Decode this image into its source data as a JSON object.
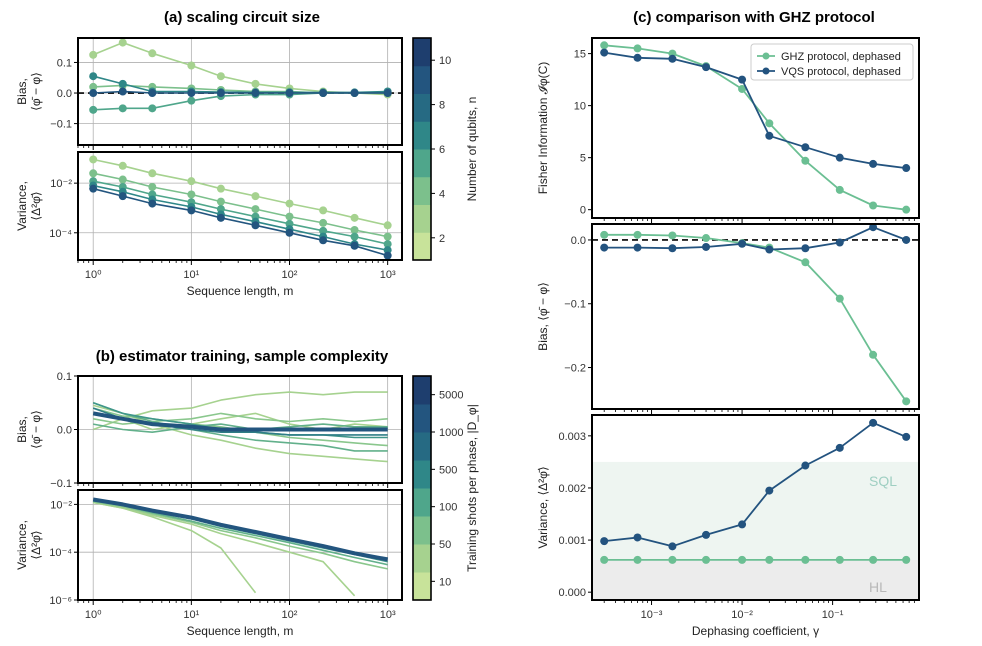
{
  "chart_data": [
    {
      "panel": "a-bias",
      "type": "line",
      "title": "(a) scaling circuit size",
      "ylabel_top": "Bias,",
      "ylabel_bottom": "⟨φ̄ − φ⟩",
      "xscale": "log",
      "xlim": [
        0.7,
        1400
      ],
      "ylim": [
        -0.17,
        0.18
      ],
      "yticks": [
        -0.1,
        0.0,
        0.1
      ],
      "ytick_labels": [
        "−0.1",
        "0.0",
        "0.1"
      ],
      "x": [
        1,
        2,
        4,
        10,
        20,
        45,
        100,
        220,
        460,
        1000
      ],
      "reference_line": 0,
      "series": [
        {
          "name": "n=2",
          "color": "#a6d28f",
          "values": [
            0.125,
            0.165,
            0.13,
            0.09,
            0.055,
            0.03,
            0.015,
            0.005,
            0.0,
            -0.005
          ]
        },
        {
          "name": "n=4",
          "color": "#7cc08c",
          "values": [
            0.02,
            0.025,
            0.02,
            0.015,
            0.01,
            0.005,
            0.005,
            0.0,
            0.0,
            0.0
          ]
        },
        {
          "name": "n=6",
          "color": "#4fa68b",
          "values": [
            -0.055,
            -0.05,
            -0.05,
            -0.025,
            -0.01,
            -0.005,
            -0.005,
            0.0,
            0.0,
            0.0
          ]
        },
        {
          "name": "n=8",
          "color": "#2f8788",
          "values": [
            0.055,
            0.03,
            0.005,
            0.005,
            0.003,
            0.002,
            0.002,
            0.002,
            0.002,
            0.005
          ]
        },
        {
          "name": "n=10",
          "color": "#23557f",
          "values": [
            0.0,
            0.005,
            0.0,
            0.0,
            0.0,
            0.0,
            0.0,
            0.0,
            0.0,
            0.0
          ]
        }
      ]
    },
    {
      "panel": "a-variance",
      "type": "line",
      "ylabel_top": "Variance,",
      "ylabel_bottom": "⟨Δ²φ̄⟩",
      "xscale": "log",
      "yscale": "log",
      "xlim": [
        0.7,
        1400
      ],
      "ylim": [
        8e-06,
        0.18
      ],
      "yticks": [
        0.0001,
        0.01
      ],
      "ytick_labels": [
        "10⁻⁴",
        "10⁻²"
      ],
      "xticks": [
        1,
        10,
        100,
        1000
      ],
      "xtick_labels": [
        "10⁰",
        "10¹",
        "10²",
        "10³"
      ],
      "xlabel": "Sequence length, m",
      "x": [
        1,
        2,
        4,
        10,
        20,
        45,
        100,
        220,
        460,
        1000
      ],
      "series": [
        {
          "name": "n=2",
          "color": "#a6d28f",
          "values": [
            0.09,
            0.05,
            0.025,
            0.012,
            0.006,
            0.003,
            0.0015,
            0.0008,
            0.0004,
            0.0002
          ]
        },
        {
          "name": "n=4",
          "color": "#7cc08c",
          "values": [
            0.025,
            0.014,
            0.007,
            0.0035,
            0.0018,
            0.0009,
            0.00045,
            0.00025,
            0.00013,
            7e-05
          ]
        },
        {
          "name": "n=6",
          "color": "#4fa68b",
          "values": [
            0.012,
            0.007,
            0.0035,
            0.0017,
            0.0009,
            0.00045,
            0.00023,
            0.00012,
            7e-05,
            3.5e-05
          ]
        },
        {
          "name": "n=8",
          "color": "#2f8788",
          "values": [
            0.008,
            0.0045,
            0.0022,
            0.0011,
            0.00055,
            0.00028,
            0.00014,
            7e-05,
            3.5e-05,
            2e-05
          ]
        },
        {
          "name": "n=10",
          "color": "#23557f",
          "values": [
            0.006,
            0.003,
            0.0015,
            0.0008,
            0.0004,
            0.0002,
            0.0001,
            5e-05,
            3e-05,
            1.2e-05
          ]
        }
      ]
    },
    {
      "panel": "a-colorbar",
      "type": "colorbar",
      "label": "Number of qubits, n",
      "tick_labels": [
        "2",
        "4",
        "6",
        "8",
        "10"
      ],
      "colors": [
        "#c8e39a",
        "#a6d28f",
        "#7cc08c",
        "#4fa68b",
        "#2f8788",
        "#266a83",
        "#23557f",
        "#1e3e6e"
      ]
    },
    {
      "panel": "b-bias",
      "type": "line",
      "title": "(b) estimator training, sample complexity",
      "ylabel_top": "Bias,",
      "ylabel_bottom": "⟨φ̄ − φ⟩",
      "xscale": "log",
      "xlim": [
        0.7,
        1400
      ],
      "ylim": [
        -0.1,
        0.1
      ],
      "yticks": [
        -0.1,
        0.0,
        0.1
      ],
      "ytick_labels": [
        "−0.1",
        "0.0",
        "0.1"
      ],
      "x": [
        1,
        2,
        4,
        10,
        20,
        45,
        100,
        220,
        460,
        1000
      ],
      "series": [
        {
          "name": "10 shots a",
          "color": "#a6d28f",
          "values": [
            0.03,
            0.02,
            0.035,
            0.04,
            0.055,
            0.065,
            0.07,
            0.065,
            0.07,
            0.07
          ]
        },
        {
          "name": "10 shots b",
          "color": "#a6d28f",
          "values": [
            0.045,
            0.03,
            0.01,
            -0.01,
            -0.02,
            -0.035,
            -0.045,
            -0.05,
            -0.055,
            -0.06
          ]
        },
        {
          "name": "10 shots c",
          "color": "#a6d28f",
          "values": [
            0.0,
            0.02,
            0.0,
            0.01,
            0.02,
            0.03,
            0.01,
            0.0,
            0.01,
            0.005
          ]
        },
        {
          "name": "50 shots a",
          "color": "#8ac78d",
          "values": [
            0.04,
            0.025,
            0.02,
            0.01,
            0.005,
            -0.005,
            -0.015,
            -0.02,
            -0.025,
            -0.03
          ]
        },
        {
          "name": "50 shots b",
          "color": "#8ac78d",
          "values": [
            0.02,
            0.01,
            0.015,
            0.02,
            0.03,
            0.02,
            0.015,
            0.02,
            0.015,
            0.02
          ]
        },
        {
          "name": "100 shots a",
          "color": "#62b08b",
          "values": [
            0.05,
            0.03,
            0.015,
            0.0,
            -0.01,
            -0.02,
            -0.025,
            -0.03,
            -0.04,
            -0.04
          ]
        },
        {
          "name": "100 shots b",
          "color": "#62b08b",
          "values": [
            0.01,
            0.0,
            -0.005,
            0.005,
            0.01,
            0.0,
            0.005,
            0.01,
            0.005,
            0.005
          ]
        },
        {
          "name": "500 shots",
          "color": "#3f968a",
          "values": [
            0.05,
            0.03,
            0.02,
            0.01,
            0.0,
            -0.005,
            -0.01,
            -0.01,
            -0.015,
            -0.015
          ]
        },
        {
          "name": "1000 shots",
          "color": "#2f7d86",
          "values": [
            0.04,
            0.02,
            0.01,
            0.0,
            -0.005,
            -0.005,
            -0.01,
            -0.01,
            -0.01,
            -0.01
          ]
        },
        {
          "name": "5000 shots",
          "color": "#23557f",
          "values": [
            0.03,
            0.02,
            0.01,
            0.005,
            0.0,
            0.0,
            0.0,
            0.0,
            0.0,
            0.0
          ]
        }
      ]
    },
    {
      "panel": "b-variance",
      "type": "line",
      "ylabel_top": "Variance,",
      "ylabel_bottom": "⟨Δ²φ̄⟩",
      "xscale": "log",
      "yscale": "log",
      "xlim": [
        0.7,
        1400
      ],
      "ylim": [
        1e-06,
        0.04
      ],
      "yticks": [
        1e-06,
        0.0001,
        0.01
      ],
      "ytick_labels": [
        "10⁻⁶",
        "10⁻⁴",
        "10⁻²"
      ],
      "xticks": [
        1,
        10,
        100,
        1000
      ],
      "xtick_labels": [
        "10⁰",
        "10¹",
        "10²",
        "10³"
      ],
      "xlabel": "Sequence length, m",
      "x": [
        1,
        2,
        4,
        10,
        20,
        45,
        100,
        220,
        460,
        1000
      ],
      "series": [
        {
          "name": "10 shots a",
          "color": "#a6d28f",
          "values": [
            0.012,
            0.007,
            0.003,
            0.0008,
            0.00015,
            2e-06,
            null,
            null,
            null,
            null
          ]
        },
        {
          "name": "10 shots b",
          "color": "#a6d28f",
          "values": [
            0.012,
            0.007,
            0.0035,
            0.0015,
            0.0006,
            0.00025,
            0.0001,
            4e-05,
            1.5e-06,
            null
          ]
        },
        {
          "name": "50 shots",
          "color": "#8ac78d",
          "values": [
            0.013,
            0.008,
            0.004,
            0.0018,
            0.0008,
            0.0004,
            0.00018,
            9e-05,
            4e-05,
            2e-05
          ]
        },
        {
          "name": "100 shots",
          "color": "#62b08b",
          "values": [
            0.014,
            0.009,
            0.0045,
            0.002,
            0.001,
            0.0005,
            0.00025,
            0.00012,
            6e-05,
            3e-05
          ]
        },
        {
          "name": "500 shots",
          "color": "#3f968a",
          "values": [
            0.015,
            0.009,
            0.005,
            0.0025,
            0.0012,
            0.0006,
            0.0003,
            0.00015,
            8e-05,
            4e-05
          ]
        },
        {
          "name": "5000 shots",
          "color": "#23557f",
          "values": [
            0.016,
            0.01,
            0.0055,
            0.0028,
            0.0014,
            0.0007,
            0.00035,
            0.00018,
            9e-05,
            5e-05
          ]
        }
      ]
    },
    {
      "panel": "b-colorbar",
      "type": "colorbar",
      "label": "Training shots per phase, |D_φ|",
      "tick_labels": [
        "10",
        "50",
        "100",
        "500",
        "1000",
        "5000"
      ],
      "colors": [
        "#c8e39a",
        "#a6d28f",
        "#7cc08c",
        "#4fa68b",
        "#2f8788",
        "#266a83",
        "#23557f",
        "#1e3e6e"
      ]
    },
    {
      "panel": "c-fisher",
      "type": "line",
      "title": "(c) comparison with GHZ protocol",
      "ylabel": "Fisher Information 𝓘φ(C)",
      "xscale": "log",
      "xlim": [
        0.00022,
        0.9
      ],
      "ylim": [
        -0.8,
        16.5
      ],
      "yticks": [
        0,
        5,
        10,
        15
      ],
      "ytick_labels": [
        "0",
        "5",
        "10",
        "15"
      ],
      "legend_position": "top-right",
      "x": [
        0.0003,
        0.0007,
        0.0017,
        0.004,
        0.01,
        0.02,
        0.05,
        0.12,
        0.28,
        0.65
      ],
      "series": [
        {
          "name": "GHZ protocol, dephased",
          "color": "#6bbf93",
          "values": [
            15.8,
            15.5,
            15.0,
            13.8,
            11.6,
            8.3,
            4.7,
            1.9,
            0.4,
            0.0
          ]
        },
        {
          "name": "VQS protocol, dephased",
          "color": "#23537f",
          "values": [
            15.1,
            14.6,
            14.5,
            13.7,
            12.5,
            7.1,
            6.0,
            5.0,
            4.4,
            4.0
          ]
        }
      ]
    },
    {
      "panel": "c-bias",
      "type": "line",
      "ylabel": "Bias, ⟨φ̄ − φ⟩",
      "xscale": "log",
      "xlim": [
        0.00022,
        0.9
      ],
      "ylim": [
        -0.265,
        0.025
      ],
      "yticks": [
        -0.2,
        -0.1,
        0.0
      ],
      "ytick_labels": [
        "−0.2",
        "−0.1",
        "0.0"
      ],
      "reference_line": 0,
      "x": [
        0.0003,
        0.0007,
        0.0017,
        0.004,
        0.01,
        0.02,
        0.05,
        0.12,
        0.28,
        0.65
      ],
      "series": [
        {
          "name": "GHZ protocol, dephased",
          "color": "#6bbf93",
          "values": [
            0.008,
            0.008,
            0.007,
            0.003,
            -0.005,
            -0.012,
            -0.035,
            -0.092,
            -0.18,
            -0.253
          ]
        },
        {
          "name": "VQS protocol, dephased",
          "color": "#23537f",
          "values": [
            -0.012,
            -0.012,
            -0.013,
            -0.011,
            -0.006,
            -0.015,
            -0.013,
            -0.004,
            0.02,
            0.0
          ]
        }
      ]
    },
    {
      "panel": "c-variance",
      "type": "line",
      "ylabel": "Variance, ⟨Δ²φ̄⟩",
      "xscale": "log",
      "xlim": [
        0.00022,
        0.9
      ],
      "ylim": [
        -0.00015,
        0.0034
      ],
      "yticks": [
        0.0,
        0.001,
        0.002,
        0.003
      ],
      "ytick_labels": [
        "0.000",
        "0.001",
        "0.002",
        "0.003"
      ],
      "xticks": [
        0.001,
        0.01,
        0.1
      ],
      "xtick_labels": [
        "10⁻³",
        "10⁻²",
        "10⁻¹"
      ],
      "xlabel": "Dephasing coefficient, γ",
      "bands": [
        {
          "label": "SQL",
          "from": 0.00062,
          "to": 0.0025,
          "color": "#eef5f1",
          "text_color": "#9fcfc2"
        },
        {
          "label": "HL",
          "from": -0.00015,
          "to": 0.00062,
          "color": "#ececec",
          "text_color": "#b8b8b8"
        }
      ],
      "x": [
        0.0003,
        0.0007,
        0.0017,
        0.004,
        0.01,
        0.02,
        0.05,
        0.12,
        0.28,
        0.65
      ],
      "series": [
        {
          "name": "GHZ protocol, dephased",
          "color": "#6bbf93",
          "values": [
            0.00062,
            0.00062,
            0.00062,
            0.00062,
            0.00062,
            0.00062,
            0.00062,
            0.00062,
            0.00062,
            0.00062
          ]
        },
        {
          "name": "VQS protocol, dephased",
          "color": "#23537f",
          "values": [
            0.00098,
            0.00105,
            0.00088,
            0.0011,
            0.0013,
            0.00195,
            0.00243,
            0.00277,
            0.00325,
            0.00298
          ]
        }
      ]
    }
  ]
}
